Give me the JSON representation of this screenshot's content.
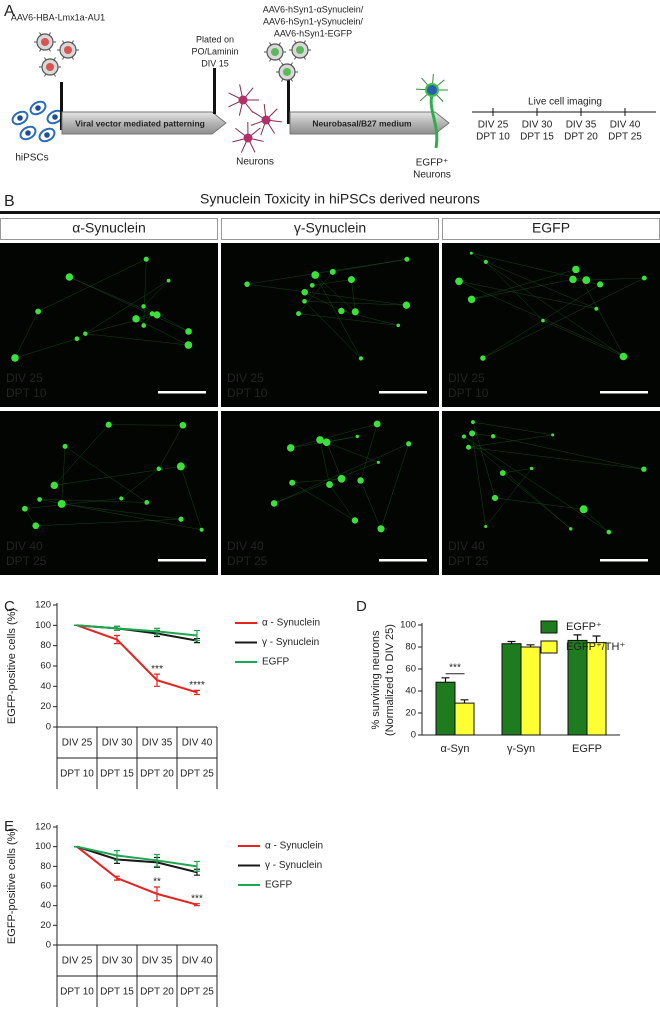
{
  "panel_a": {
    "label": "A",
    "vector1": "AAV6-HBA-Lmx1a-AU1",
    "cells": "hiPSCs",
    "step1": "Viral vector mediated patterning",
    "plating": [
      "Plated on",
      "PO/Laminin",
      "DIV 15"
    ],
    "neurons": "Neurons",
    "vector2": [
      "AAV6-hSyn1-αSynuclein/",
      "AAV6-hSyn1-γSynuclein/",
      "AAV6-hSyn1-EGFP"
    ],
    "step2": "Neurobasal/B27 medium",
    "result": [
      "EGFP⁺",
      "Neurons"
    ],
    "imaging": "Live cell imaging",
    "timepoints": [
      [
        "DIV 25",
        "DPT 10"
      ],
      [
        "DIV 30",
        "DPT 15"
      ],
      [
        "DIV 35",
        "DPT 20"
      ],
      [
        "DIV 40",
        "DPT 25"
      ]
    ]
  },
  "panel_b": {
    "label": "B",
    "title": "Synuclein Toxicity in hiPSCs derived neurons",
    "headers": [
      {
        "text": "α-Synuclein",
        "color": "#e8231f"
      },
      {
        "text": "γ-Synuclein",
        "color": "#222222"
      },
      {
        "text": "EGFP",
        "color": "#22b14c"
      }
    ],
    "images": [
      [
        [
          "DIV 25",
          "DPT 10"
        ],
        [
          "DIV 25",
          "DPT 10"
        ],
        [
          "DIV 25",
          "DPT 10"
        ]
      ],
      [
        [
          "DIV 40",
          "DPT 25"
        ],
        [
          "DIV 40",
          "DPT 25"
        ],
        [
          "DIV 40",
          "DPT 25"
        ]
      ]
    ]
  },
  "chart_data": [
    {
      "type": "line",
      "label": "C",
      "y_label": "EGFP-positive cells (%)",
      "categories": [
        [
          "DIV 25",
          "DPT 10"
        ],
        [
          "DIV 30",
          "DPT 15"
        ],
        [
          "DIV 35",
          "DPT 20"
        ],
        [
          "DIV 40",
          "DPT 25"
        ]
      ],
      "ylim": [
        0,
        120
      ],
      "yticks": [
        0,
        20,
        40,
        60,
        80,
        100,
        120
      ],
      "series": [
        {
          "name": "α - Synuclein",
          "color": "#e8231f",
          "values": [
            100,
            86,
            46,
            34
          ],
          "errors": [
            0,
            4,
            6,
            2
          ]
        },
        {
          "name": "γ - Synuclein",
          "color": "#1a1a1a",
          "values": [
            100,
            97,
            92,
            85
          ],
          "errors": [
            0,
            2,
            3,
            2
          ]
        },
        {
          "name": "EGFP",
          "color": "#1fa650",
          "values": [
            100,
            97,
            94,
            90
          ],
          "errors": [
            0,
            2,
            3,
            5
          ]
        }
      ],
      "significance": [
        null,
        null,
        "***",
        "****"
      ]
    },
    {
      "type": "bar",
      "label": "D",
      "y_label": [
        "% surviving neurons",
        "(Normalized to DIV 25)"
      ],
      "categories": [
        "α-Syn",
        "γ-Syn",
        "EGFP"
      ],
      "ylim": [
        0,
        100
      ],
      "yticks": [
        0,
        20,
        40,
        60,
        80,
        100
      ],
      "series": [
        {
          "name": "EGFP⁺",
          "color": "#1e7b1e",
          "values": [
            48,
            83,
            86
          ],
          "errors": [
            4,
            2,
            5
          ]
        },
        {
          "name": "EGFP⁺/TH⁺",
          "color": "#ffff33",
          "values": [
            29,
            80,
            84
          ],
          "errors": [
            3,
            2,
            6
          ]
        }
      ],
      "significance": [
        "***",
        null,
        null
      ]
    },
    {
      "type": "line",
      "label": "E",
      "y_label": "EGFP-positive cells (%)",
      "categories": [
        [
          "DIV 25",
          "DPT 10"
        ],
        [
          "DIV 30",
          "DPT 15"
        ],
        [
          "DIV 35",
          "DPT 20"
        ],
        [
          "DIV 40",
          "DPT 25"
        ]
      ],
      "ylim": [
        0,
        120
      ],
      "yticks": [
        0,
        20,
        40,
        60,
        80,
        100,
        120
      ],
      "series": [
        {
          "name": "α - Synuclein",
          "color": "#e8231f",
          "values": [
            100,
            68,
            52,
            41
          ],
          "errors": [
            0,
            2,
            7,
            1
          ]
        },
        {
          "name": "γ - Synuclein",
          "color": "#1a1a1a",
          "values": [
            100,
            87,
            84,
            74
          ],
          "errors": [
            0,
            4,
            5,
            3
          ]
        },
        {
          "name": "EGFP",
          "color": "#1fa650",
          "values": [
            100,
            91,
            86,
            80
          ],
          "errors": [
            0,
            5,
            6,
            5
          ]
        }
      ],
      "significance": [
        null,
        null,
        "**",
        "***"
      ]
    }
  ]
}
